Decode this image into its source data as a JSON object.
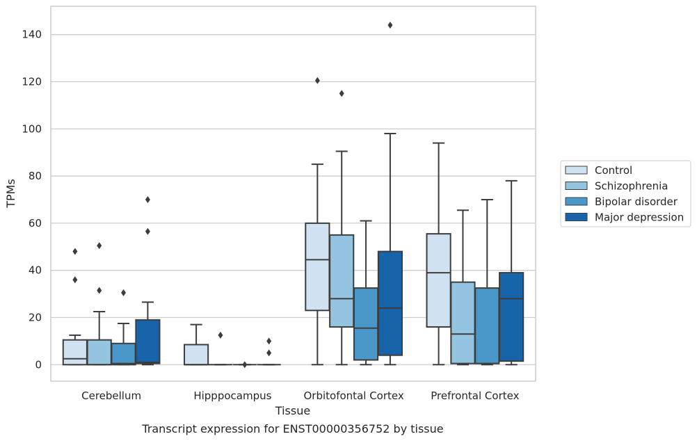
{
  "chart_data": {
    "type": "box",
    "title": "",
    "caption": "Transcript expression for ENST00000356752 by tissue",
    "xlabel": "Tissue",
    "ylabel": "TPMs",
    "ylim": [
      -7,
      152
    ],
    "yticks": [
      0,
      20,
      40,
      60,
      80,
      100,
      120,
      140
    ],
    "grid": "horizontal",
    "legend_position": "right",
    "categories": [
      "Cerebellum",
      "Hipppocampus",
      "Orbitofontal Cortex",
      "Prefrontal Cortex"
    ],
    "series": [
      {
        "name": "Control",
        "color": "#d0e1f2",
        "boxes": [
          {
            "whislo": 0,
            "q1": 0,
            "med": 2.5,
            "q3": 10.5,
            "whishi": 12.5,
            "fliers": [
              36,
              48
            ]
          },
          {
            "whislo": 0,
            "q1": 0,
            "med": 0,
            "q3": 8.5,
            "whishi": 17,
            "fliers": []
          },
          {
            "whislo": 0,
            "q1": 23,
            "med": 44.5,
            "q3": 60,
            "whishi": 85,
            "fliers": [
              120.5
            ]
          },
          {
            "whislo": 0,
            "q1": 16,
            "med": 39,
            "q3": 55.5,
            "whishi": 94,
            "fliers": []
          }
        ]
      },
      {
        "name": "Schizophrenia",
        "color": "#94c4df",
        "boxes": [
          {
            "whislo": 0,
            "q1": 0,
            "med": 0,
            "q3": 10.5,
            "whishi": 22.5,
            "fliers": [
              31.5,
              50.5
            ]
          },
          {
            "whislo": 0,
            "q1": 0,
            "med": 0,
            "q3": 0,
            "whishi": 0,
            "fliers": [
              12.5
            ]
          },
          {
            "whislo": 0,
            "q1": 16,
            "med": 28,
            "q3": 55,
            "whishi": 90.5,
            "fliers": [
              115
            ]
          },
          {
            "whislo": 0,
            "q1": 0.5,
            "med": 13,
            "q3": 35,
            "whishi": 65.5,
            "fliers": []
          }
        ]
      },
      {
        "name": "Bipolar disorder",
        "color": "#4a98c9",
        "boxes": [
          {
            "whislo": 0,
            "q1": 0,
            "med": 0.5,
            "q3": 9,
            "whishi": 17.5,
            "fliers": [
              30.5
            ]
          },
          {
            "whislo": 0,
            "q1": 0,
            "med": 0,
            "q3": 0,
            "whishi": 0,
            "fliers": [
              0
            ]
          },
          {
            "whislo": 0,
            "q1": 2,
            "med": 15.5,
            "q3": 32.5,
            "whishi": 61,
            "fliers": []
          },
          {
            "whislo": 0,
            "q1": 0.5,
            "med": 0.5,
            "q3": 32.5,
            "whishi": 70,
            "fliers": []
          }
        ]
      },
      {
        "name": "Major depression",
        "color": "#1764ab",
        "boxes": [
          {
            "whislo": 0,
            "q1": 0.5,
            "med": 1,
            "q3": 19,
            "whishi": 26.5,
            "fliers": [
              56.5,
              70
            ]
          },
          {
            "whislo": 0,
            "q1": 0,
            "med": 0,
            "q3": 0,
            "whishi": 0,
            "fliers": [
              5,
              10
            ]
          },
          {
            "whislo": 0,
            "q1": 4,
            "med": 24,
            "q3": 48,
            "whishi": 98,
            "fliers": [
              144
            ]
          },
          {
            "whislo": 0,
            "q1": 1.5,
            "med": 28,
            "q3": 39,
            "whishi": 78,
            "fliers": []
          }
        ]
      }
    ]
  }
}
